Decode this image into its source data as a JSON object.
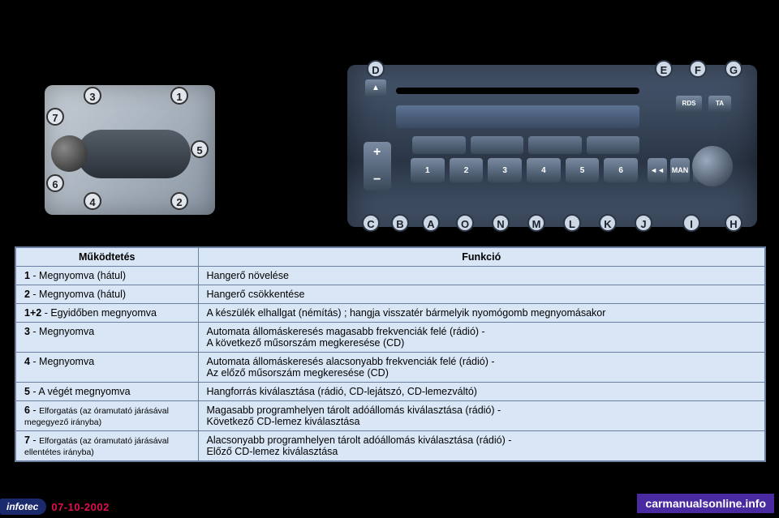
{
  "stalk_callouts": {
    "1": "1",
    "2": "2",
    "3": "3",
    "4": "4",
    "5": "5",
    "6": "6",
    "7": "7"
  },
  "radio_callouts": {
    "A": "A",
    "B": "B",
    "C": "C",
    "D": "D",
    "E": "E",
    "F": "F",
    "G": "G",
    "H": "H",
    "I": "I",
    "J": "J",
    "K": "K",
    "L": "L",
    "M": "M",
    "N": "N",
    "O": "O"
  },
  "radio_labels": {
    "rds": "RDS",
    "ta": "TA",
    "man": "MAN",
    "prev": "◄◄",
    "next": "►►"
  },
  "presets": [
    "1",
    "2",
    "3",
    "4",
    "5",
    "6"
  ],
  "table": {
    "headers": {
      "action": "Működtetés",
      "function": "Funkció"
    },
    "rows": [
      {
        "key": "1",
        "action": " - Megnyomva (hátul)",
        "func": "Hangerő növelése"
      },
      {
        "key": "2",
        "action": " - Megnyomva (hátul)",
        "func": "Hangerő csökkentése"
      },
      {
        "key": "1+2",
        "action": " - Egyidőben megnyomva",
        "func": "A készülék elhallgat (némítás) ; hangja visszatér bármelyik nyomógomb megnyomásakor"
      },
      {
        "key": "3",
        "action": " - Megnyomva",
        "func": "Automata állomáskeresés magasabb frekvenciák felé (rádió) -",
        "func2": "A következő műsorszám megkeresése (CD)"
      },
      {
        "key": "4",
        "action": " - Megnyomva",
        "func": "Automata állomáskeresés alacsonyabb frekvenciák felé (rádió) -",
        "func2": "Az előző műsorszám megkeresése (CD)"
      },
      {
        "key": "5",
        "action": " - A végét megnyomva",
        "func": "Hangforrás kiválasztása (rádió, CD-lejátszó, CD-lemezváltó)"
      },
      {
        "key": "6",
        "action": " - ",
        "action_sub": "Elforgatás (az óramutató járásával megegyező irányba)",
        "func": "Magasabb programhelyen tárolt adóállomás kiválasztása (rádió) -",
        "func2": "Következő CD-lemez kiválasztása"
      },
      {
        "key": "7",
        "action": " - ",
        "action_sub": "Elforgatás (az óramutató járásával ellentétes irányba)",
        "func": "Alacsonyabb programhelyen tárolt adóállomás kiválasztása (rádió) -",
        "func2": "Előző CD-lemez kiválasztása"
      }
    ]
  },
  "footer": {
    "brand": "infotec",
    "date": "07-10-2002",
    "watermark": "carmanualsonline.info"
  }
}
